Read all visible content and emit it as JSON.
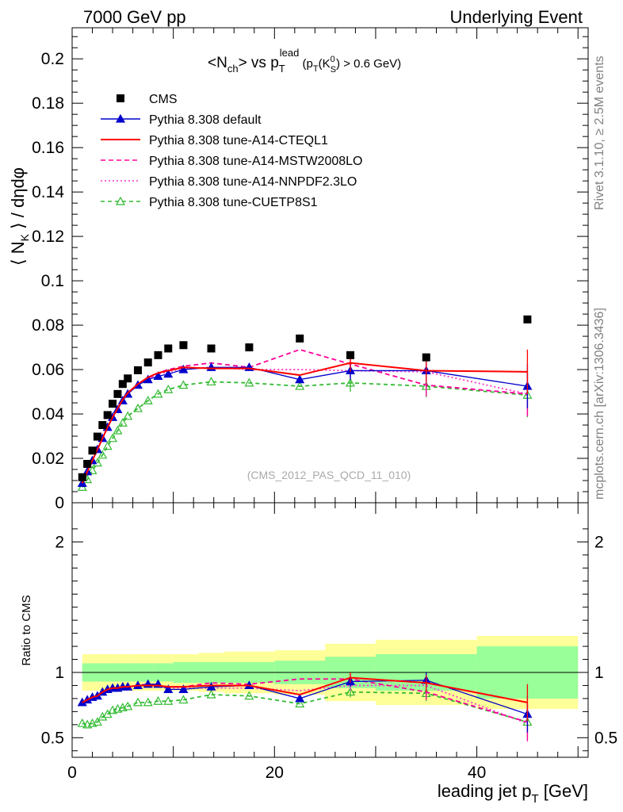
{
  "header": {
    "left": "7000 GeV pp",
    "right": "Underlying Event"
  },
  "side_labels": {
    "rivet": "Rivet 3.1.10, ≥ 2.5M events",
    "mcplots": "mcplots.cern.ch [arXiv:1306.3436]"
  },
  "watermark": "(CMS_2012_PAS_QCD_11_010)",
  "chart_data": [
    {
      "type": "line",
      "title": "<N_ch> vs p_T^lead (p_T(K_S^0) > 0.6 GeV)",
      "title_parts": {
        "main": "<N",
        "sub1": "ch",
        "mid": "> vs p",
        "sub2": "T",
        "sup": "lead",
        "cond_a": " (p",
        "cond_sub": "T",
        "cond_b": "(K",
        "cond_sup": "0",
        "cond_sub2": "S",
        "cond_c": ") > 0.6 GeV)"
      },
      "ylabel": "⟨ N_K ⟩ / dηdφ",
      "ylabel_parts": {
        "a": "⟨ N",
        "sub": "K",
        "b": " ⟩ / dηdφ"
      },
      "xlim": [
        0,
        51
      ],
      "ylim": [
        0,
        0.214
      ],
      "yticks": [
        "0",
        "0.02",
        "0.04",
        "0.06",
        "0.08",
        "0.1",
        "0.12",
        "0.14",
        "0.16",
        "0.18",
        "0.2"
      ],
      "ytick_values": [
        0,
        0.02,
        0.04,
        0.06,
        0.08,
        0.1,
        0.12,
        0.14,
        0.16,
        0.18,
        0.2
      ],
      "legend_position": "top-left",
      "colors": {
        "data": "#000000",
        "default": "#0000cc",
        "cteql1": "#ff0000",
        "mstw": "#ff0099",
        "nnpdf": "#ff33cc",
        "cuetp8s1": "#33bb33"
      },
      "x": [
        1.0,
        1.5,
        2.0,
        2.5,
        3.0,
        3.5,
        4.0,
        4.5,
        5.0,
        5.5,
        6.5,
        7.5,
        8.5,
        9.5,
        11.0,
        13.75,
        17.5,
        22.5,
        27.5,
        35.0,
        45.0
      ],
      "series": [
        {
          "name": "CMS",
          "style": "markers-square",
          "values": [
            0.0115,
            0.0175,
            0.0235,
            0.0298,
            0.035,
            0.0395,
            0.0446,
            0.049,
            0.0535,
            0.056,
            0.0597,
            0.0632,
            0.0665,
            0.0695,
            0.071,
            0.0695,
            0.07,
            0.074,
            0.0665,
            0.0655,
            0.0826
          ]
        },
        {
          "name": "Pythia 8.308 default",
          "style": "solid-triangle",
          "values": [
            0.0088,
            0.014,
            0.019,
            0.024,
            0.029,
            0.034,
            0.0385,
            0.042,
            0.046,
            0.049,
            0.053,
            0.0555,
            0.057,
            0.058,
            0.06,
            0.061,
            0.061,
            0.0555,
            0.0595,
            0.0595,
            0.0525
          ]
        },
        {
          "name": "Pythia 8.308 tune-A14-CTEQL1",
          "style": "solid",
          "values": [
            0.0088,
            0.014,
            0.019,
            0.024,
            0.029,
            0.034,
            0.0385,
            0.0425,
            0.0465,
            0.0495,
            0.0535,
            0.0565,
            0.0585,
            0.0595,
            0.061,
            0.0605,
            0.0605,
            0.0575,
            0.063,
            0.0595,
            0.059
          ]
        },
        {
          "name": "Pythia 8.308 tune-A14-MSTW2008LO",
          "style": "dashed",
          "values": [
            0.0088,
            0.014,
            0.019,
            0.024,
            0.029,
            0.034,
            0.0385,
            0.0425,
            0.0465,
            0.0495,
            0.0535,
            0.056,
            0.0585,
            0.06,
            0.0615,
            0.063,
            0.061,
            0.069,
            0.0625,
            0.053,
            0.049
          ]
        },
        {
          "name": "Pythia 8.308 tune-A14-NNPDF2.3LO",
          "style": "dotted",
          "values": [
            0.0088,
            0.014,
            0.019,
            0.024,
            0.029,
            0.034,
            0.0385,
            0.0425,
            0.0465,
            0.0495,
            0.0535,
            0.056,
            0.058,
            0.059,
            0.0605,
            0.061,
            0.06,
            0.06,
            0.0595,
            0.059,
            0.049
          ]
        },
        {
          "name": "Pythia 8.308 tune-CUETP8S1",
          "style": "dashed-open-triangle",
          "values": [
            0.007,
            0.0105,
            0.0145,
            0.018,
            0.0215,
            0.0255,
            0.029,
            0.0325,
            0.036,
            0.039,
            0.0425,
            0.046,
            0.049,
            0.051,
            0.053,
            0.0545,
            0.054,
            0.0525,
            0.054,
            0.0525,
            0.0485
          ]
        }
      ]
    },
    {
      "type": "line",
      "ylabel": "Ratio to CMS",
      "xlabel": "leading jet p_T [GeV]",
      "xlabel_parts": {
        "a": "leading jet p",
        "sub": "T",
        "b": " [GeV]"
      },
      "xlim": [
        0,
        51
      ],
      "ylim": [
        0.35,
        2.3
      ],
      "xticks": [
        "0",
        "20",
        "40"
      ],
      "xtick_values": [
        0,
        20,
        40
      ],
      "yticks": [
        "0.5",
        "1",
        "2"
      ],
      "ytick_values": [
        0.5,
        1,
        2
      ],
      "bands": {
        "edges": [
          1,
          2,
          4,
          6,
          8,
          10,
          12.5,
          15,
          20,
          25,
          30,
          40,
          50
        ],
        "yellow_halfwidth": [
          0.14,
          0.14,
          0.14,
          0.14,
          0.14,
          0.14,
          0.15,
          0.16,
          0.17,
          0.22,
          0.25,
          0.28
        ],
        "green_halfwidth": [
          0.07,
          0.07,
          0.07,
          0.07,
          0.07,
          0.08,
          0.08,
          0.08,
          0.09,
          0.12,
          0.14,
          0.2
        ]
      },
      "x": [
        1.0,
        1.5,
        2.0,
        2.5,
        3.0,
        3.5,
        4.0,
        4.5,
        5.0,
        5.5,
        6.5,
        7.5,
        8.5,
        9.5,
        11.0,
        13.75,
        17.5,
        22.5,
        27.5,
        35.0,
        45.0
      ],
      "series": [
        {
          "name": "Pythia 8.308 default",
          "style": "solid-triangle",
          "values": [
            0.77,
            0.79,
            0.81,
            0.82,
            0.85,
            0.87,
            0.88,
            0.88,
            0.89,
            0.89,
            0.9,
            0.91,
            0.91,
            0.87,
            0.87,
            0.89,
            0.9,
            0.8,
            0.93,
            0.94,
            0.68
          ]
        },
        {
          "name": "Pythia 8.308 tune-A14-CTEQL1",
          "style": "solid",
          "values": [
            0.77,
            0.79,
            0.81,
            0.82,
            0.85,
            0.87,
            0.88,
            0.88,
            0.89,
            0.89,
            0.9,
            0.9,
            0.9,
            0.89,
            0.89,
            0.9,
            0.9,
            0.83,
            0.96,
            0.92,
            0.77
          ]
        },
        {
          "name": "Pythia 8.308 tune-A14-MSTW2008LO",
          "style": "dashed",
          "values": [
            0.77,
            0.79,
            0.81,
            0.82,
            0.85,
            0.87,
            0.88,
            0.88,
            0.89,
            0.89,
            0.9,
            0.91,
            0.9,
            0.89,
            0.89,
            0.92,
            0.91,
            0.95,
            0.95,
            0.85,
            0.62
          ]
        },
        {
          "name": "Pythia 8.308 tune-A14-NNPDF2.3LO",
          "style": "dotted",
          "values": [
            0.77,
            0.79,
            0.81,
            0.82,
            0.85,
            0.87,
            0.88,
            0.88,
            0.89,
            0.89,
            0.9,
            0.9,
            0.9,
            0.88,
            0.88,
            0.88,
            0.88,
            0.86,
            0.9,
            0.9,
            0.61
          ]
        },
        {
          "name": "Pythia 8.308 tune-CUETP8S1",
          "style": "dashed-open-triangle",
          "values": [
            0.61,
            0.6,
            0.61,
            0.62,
            0.66,
            0.68,
            0.71,
            0.72,
            0.73,
            0.74,
            0.77,
            0.77,
            0.78,
            0.78,
            0.79,
            0.83,
            0.82,
            0.76,
            0.85,
            0.84,
            0.62
          ]
        }
      ]
    }
  ]
}
